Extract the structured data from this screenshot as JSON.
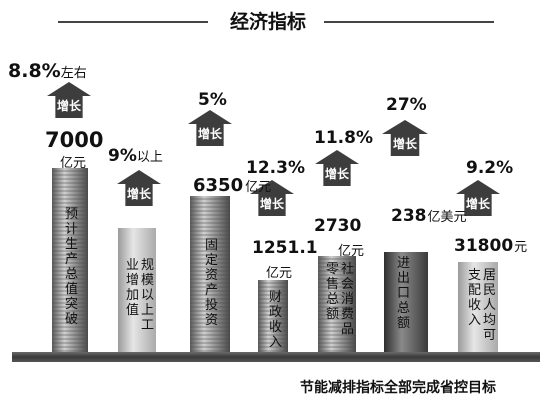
{
  "title": "经济指标",
  "footer": "节能减排指标全部完成省控目标",
  "colors": {
    "arrow": "#3d3d3d",
    "coin_dark": "#6b6b6b",
    "coin_light": "#c4c4c4",
    "bar_dark": "#505050",
    "bar_light": "#cfcfcf"
  },
  "chart_data": {
    "type": "bar",
    "title": "经济指标",
    "categories": [
      "预计生产总值突破",
      "规模以上工业增加值",
      "固定资产投资",
      "财政收入",
      "社会消费品零售总额",
      "进出口总额",
      "居民人均可支配收入"
    ],
    "values": [
      7000,
      null,
      6350,
      1251.1,
      2730,
      238,
      31800
    ],
    "value_numbers": [
      "7000",
      "",
      "6350",
      "1251.1",
      "2730",
      "238",
      "31800"
    ],
    "value_units": [
      "亿元",
      "",
      "亿元",
      "亿元",
      "亿元",
      "亿美元",
      "元"
    ],
    "growth_rates": [
      8.8,
      9,
      5,
      12.3,
      11.8,
      27,
      9.2
    ],
    "growth_labels": [
      "8.8%",
      "9%",
      "5%",
      "12.3%",
      "11.8%",
      "27%",
      "9.2%"
    ],
    "growth_suffix": [
      "左右",
      "以上",
      "",
      "",
      "",
      "",
      ""
    ],
    "arrow_label": "增长"
  }
}
